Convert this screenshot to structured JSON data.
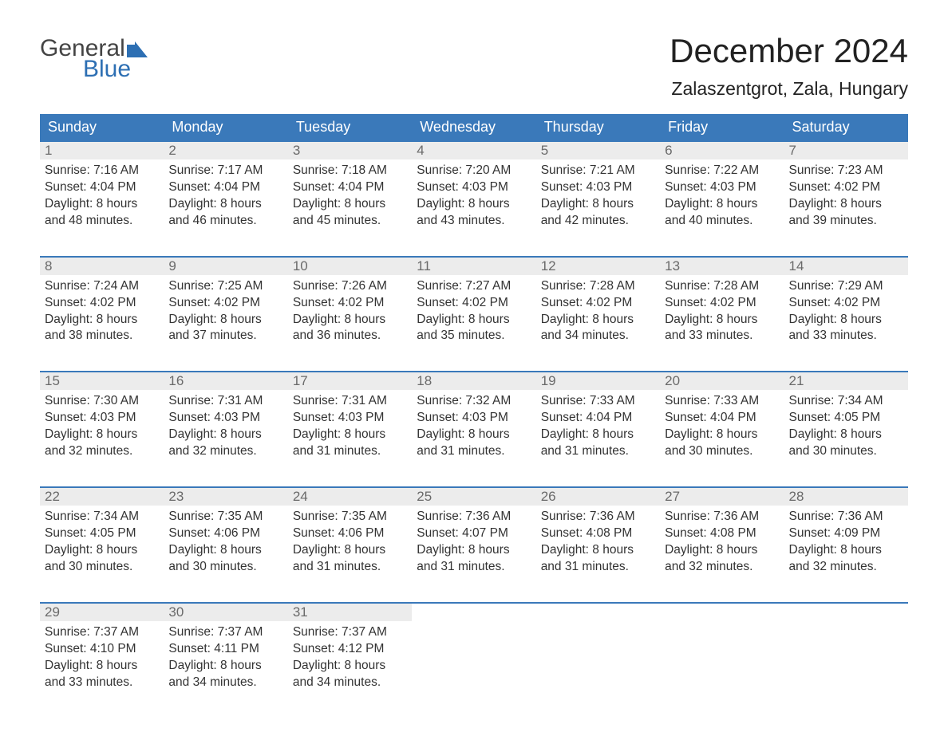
{
  "logo": {
    "word1": "General",
    "word2": "Blue"
  },
  "title": "December 2024",
  "location": "Zalaszentgrot, Zala, Hungary",
  "colors": {
    "header_bg": "#3a79ba",
    "header_text": "#ffffff",
    "day_num_bg": "#ececec",
    "day_num_text": "#6a6a6a",
    "cell_border": "#3a79ba",
    "logo_accent": "#2d6fb3",
    "body_text": "#333333",
    "background": "#ffffff"
  },
  "typography": {
    "title_fontsize": 42,
    "location_fontsize": 23,
    "header_fontsize": 18,
    "daynum_fontsize": 17,
    "body_fontsize": 15.5,
    "logo_fontsize": 30
  },
  "weekdays": [
    "Sunday",
    "Monday",
    "Tuesday",
    "Wednesday",
    "Thursday",
    "Friday",
    "Saturday"
  ],
  "weeks": [
    [
      {
        "num": "1",
        "sunrise": "Sunrise: 7:16 AM",
        "sunset": "Sunset: 4:04 PM",
        "d1": "Daylight: 8 hours",
        "d2": "and 48 minutes."
      },
      {
        "num": "2",
        "sunrise": "Sunrise: 7:17 AM",
        "sunset": "Sunset: 4:04 PM",
        "d1": "Daylight: 8 hours",
        "d2": "and 46 minutes."
      },
      {
        "num": "3",
        "sunrise": "Sunrise: 7:18 AM",
        "sunset": "Sunset: 4:04 PM",
        "d1": "Daylight: 8 hours",
        "d2": "and 45 minutes."
      },
      {
        "num": "4",
        "sunrise": "Sunrise: 7:20 AM",
        "sunset": "Sunset: 4:03 PM",
        "d1": "Daylight: 8 hours",
        "d2": "and 43 minutes."
      },
      {
        "num": "5",
        "sunrise": "Sunrise: 7:21 AM",
        "sunset": "Sunset: 4:03 PM",
        "d1": "Daylight: 8 hours",
        "d2": "and 42 minutes."
      },
      {
        "num": "6",
        "sunrise": "Sunrise: 7:22 AM",
        "sunset": "Sunset: 4:03 PM",
        "d1": "Daylight: 8 hours",
        "d2": "and 40 minutes."
      },
      {
        "num": "7",
        "sunrise": "Sunrise: 7:23 AM",
        "sunset": "Sunset: 4:02 PM",
        "d1": "Daylight: 8 hours",
        "d2": "and 39 minutes."
      }
    ],
    [
      {
        "num": "8",
        "sunrise": "Sunrise: 7:24 AM",
        "sunset": "Sunset: 4:02 PM",
        "d1": "Daylight: 8 hours",
        "d2": "and 38 minutes."
      },
      {
        "num": "9",
        "sunrise": "Sunrise: 7:25 AM",
        "sunset": "Sunset: 4:02 PM",
        "d1": "Daylight: 8 hours",
        "d2": "and 37 minutes."
      },
      {
        "num": "10",
        "sunrise": "Sunrise: 7:26 AM",
        "sunset": "Sunset: 4:02 PM",
        "d1": "Daylight: 8 hours",
        "d2": "and 36 minutes."
      },
      {
        "num": "11",
        "sunrise": "Sunrise: 7:27 AM",
        "sunset": "Sunset: 4:02 PM",
        "d1": "Daylight: 8 hours",
        "d2": "and 35 minutes."
      },
      {
        "num": "12",
        "sunrise": "Sunrise: 7:28 AM",
        "sunset": "Sunset: 4:02 PM",
        "d1": "Daylight: 8 hours",
        "d2": "and 34 minutes."
      },
      {
        "num": "13",
        "sunrise": "Sunrise: 7:28 AM",
        "sunset": "Sunset: 4:02 PM",
        "d1": "Daylight: 8 hours",
        "d2": "and 33 minutes."
      },
      {
        "num": "14",
        "sunrise": "Sunrise: 7:29 AM",
        "sunset": "Sunset: 4:02 PM",
        "d1": "Daylight: 8 hours",
        "d2": "and 33 minutes."
      }
    ],
    [
      {
        "num": "15",
        "sunrise": "Sunrise: 7:30 AM",
        "sunset": "Sunset: 4:03 PM",
        "d1": "Daylight: 8 hours",
        "d2": "and 32 minutes."
      },
      {
        "num": "16",
        "sunrise": "Sunrise: 7:31 AM",
        "sunset": "Sunset: 4:03 PM",
        "d1": "Daylight: 8 hours",
        "d2": "and 32 minutes."
      },
      {
        "num": "17",
        "sunrise": "Sunrise: 7:31 AM",
        "sunset": "Sunset: 4:03 PM",
        "d1": "Daylight: 8 hours",
        "d2": "and 31 minutes."
      },
      {
        "num": "18",
        "sunrise": "Sunrise: 7:32 AM",
        "sunset": "Sunset: 4:03 PM",
        "d1": "Daylight: 8 hours",
        "d2": "and 31 minutes."
      },
      {
        "num": "19",
        "sunrise": "Sunrise: 7:33 AM",
        "sunset": "Sunset: 4:04 PM",
        "d1": "Daylight: 8 hours",
        "d2": "and 31 minutes."
      },
      {
        "num": "20",
        "sunrise": "Sunrise: 7:33 AM",
        "sunset": "Sunset: 4:04 PM",
        "d1": "Daylight: 8 hours",
        "d2": "and 30 minutes."
      },
      {
        "num": "21",
        "sunrise": "Sunrise: 7:34 AM",
        "sunset": "Sunset: 4:05 PM",
        "d1": "Daylight: 8 hours",
        "d2": "and 30 minutes."
      }
    ],
    [
      {
        "num": "22",
        "sunrise": "Sunrise: 7:34 AM",
        "sunset": "Sunset: 4:05 PM",
        "d1": "Daylight: 8 hours",
        "d2": "and 30 minutes."
      },
      {
        "num": "23",
        "sunrise": "Sunrise: 7:35 AM",
        "sunset": "Sunset: 4:06 PM",
        "d1": "Daylight: 8 hours",
        "d2": "and 30 minutes."
      },
      {
        "num": "24",
        "sunrise": "Sunrise: 7:35 AM",
        "sunset": "Sunset: 4:06 PM",
        "d1": "Daylight: 8 hours",
        "d2": "and 31 minutes."
      },
      {
        "num": "25",
        "sunrise": "Sunrise: 7:36 AM",
        "sunset": "Sunset: 4:07 PM",
        "d1": "Daylight: 8 hours",
        "d2": "and 31 minutes."
      },
      {
        "num": "26",
        "sunrise": "Sunrise: 7:36 AM",
        "sunset": "Sunset: 4:08 PM",
        "d1": "Daylight: 8 hours",
        "d2": "and 31 minutes."
      },
      {
        "num": "27",
        "sunrise": "Sunrise: 7:36 AM",
        "sunset": "Sunset: 4:08 PM",
        "d1": "Daylight: 8 hours",
        "d2": "and 32 minutes."
      },
      {
        "num": "28",
        "sunrise": "Sunrise: 7:36 AM",
        "sunset": "Sunset: 4:09 PM",
        "d1": "Daylight: 8 hours",
        "d2": "and 32 minutes."
      }
    ],
    [
      {
        "num": "29",
        "sunrise": "Sunrise: 7:37 AM",
        "sunset": "Sunset: 4:10 PM",
        "d1": "Daylight: 8 hours",
        "d2": "and 33 minutes."
      },
      {
        "num": "30",
        "sunrise": "Sunrise: 7:37 AM",
        "sunset": "Sunset: 4:11 PM",
        "d1": "Daylight: 8 hours",
        "d2": "and 34 minutes."
      },
      {
        "num": "31",
        "sunrise": "Sunrise: 7:37 AM",
        "sunset": "Sunset: 4:12 PM",
        "d1": "Daylight: 8 hours",
        "d2": "and 34 minutes."
      },
      null,
      null,
      null,
      null
    ]
  ]
}
